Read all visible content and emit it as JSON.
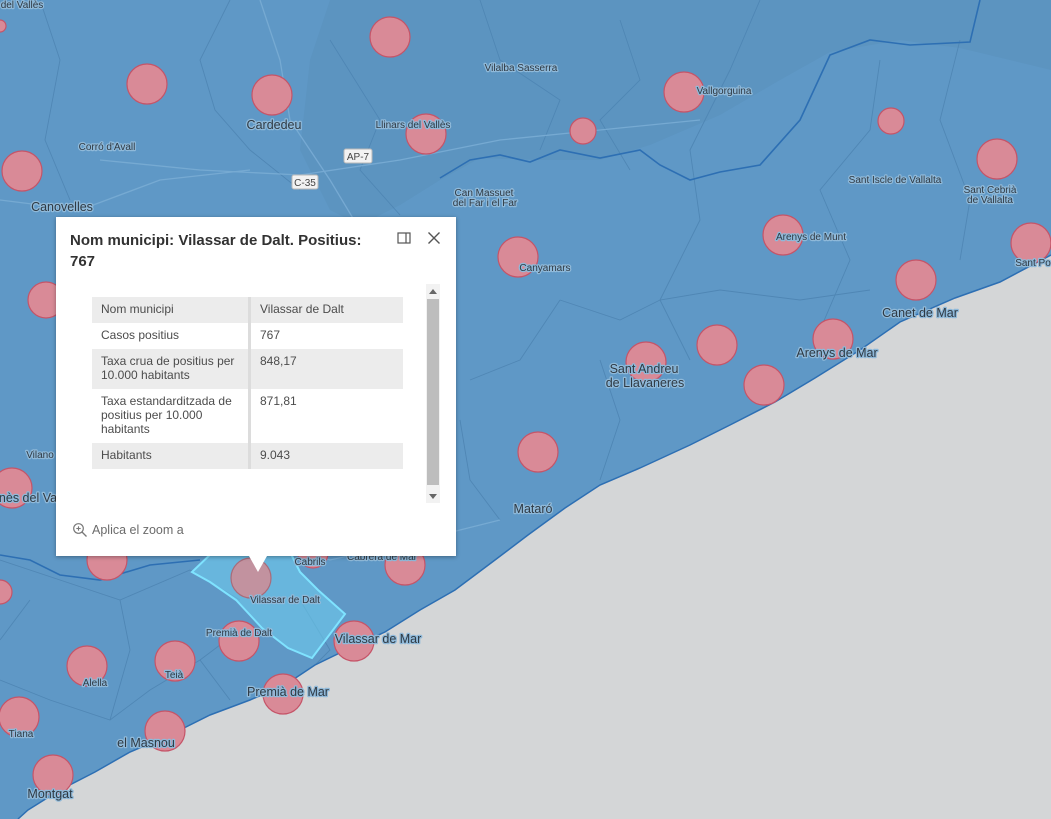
{
  "map": {
    "colors": {
      "land": "#5f98c6",
      "sea": "#d4d6d7",
      "circle": "#d98a97",
      "selected": "#6fd0f0"
    },
    "places": {
      "del_valles": "del Vallès",
      "cardedeu": "Cardedeu",
      "llinars": "Llinars del Vallès",
      "vilalba": "Vilalba Sasserra",
      "vallgorguina": "Vallgorguina",
      "corro": "Corró d'Avall",
      "canovelles": "Canovelles",
      "can_massuet_1": "Can Massuet",
      "can_massuet_2": "del Far i el Far",
      "sant_iscle": "Sant Iscle de Vallalta",
      "sant_cebria_1": "Sant Cebrià",
      "sant_cebria_2": "de Vallalta",
      "arenys_munt": "Arenys de Munt",
      "sant_pol": "Sant Po",
      "canyamars": "Canyamars",
      "canet": "Canet de Mar",
      "arenys_mar": "Arenys de Mar",
      "sant_andreu_1": "Sant Andreu",
      "sant_andreu_2": "de Llavaneres",
      "mataro": "Mataró",
      "vilano": "Vilano",
      "nes_del_va": "nès del Va",
      "cabrils": "Cabrils",
      "cabrera": "Cabrera de Mar",
      "vilassar_dalt": "Vilassar de Dalt",
      "premia_dalt": "Premià de Dalt",
      "vilassar_mar": "Vilassar de Mar",
      "alella": "Alella",
      "teia": "Teià",
      "premia_mar": "Premià de Mar",
      "tiana": "Tiana",
      "masnou": "el Masnou",
      "montgat": "Montgat"
    },
    "roads": {
      "ap7": "AP-7",
      "c35": "C-35"
    }
  },
  "popup": {
    "title": "Nom municipi: Vilassar de Dalt. Positius: 767",
    "rows": [
      {
        "label": "Nom municipi",
        "value": "Vilassar de Dalt"
      },
      {
        "label": "Casos positius",
        "value": "767"
      },
      {
        "label": "Taxa crua de positius per 10.000 habitants",
        "value": "848,17"
      },
      {
        "label": "Taxa estandarditzada de positius per 10.000 habitants",
        "value": "871,81"
      },
      {
        "label": "Habitants",
        "value": "9.043"
      }
    ],
    "zoom_label": "Aplica el zoom a",
    "icons": {
      "dock": "dock-icon",
      "close": "close-icon",
      "zoom": "zoom-in-icon"
    }
  }
}
